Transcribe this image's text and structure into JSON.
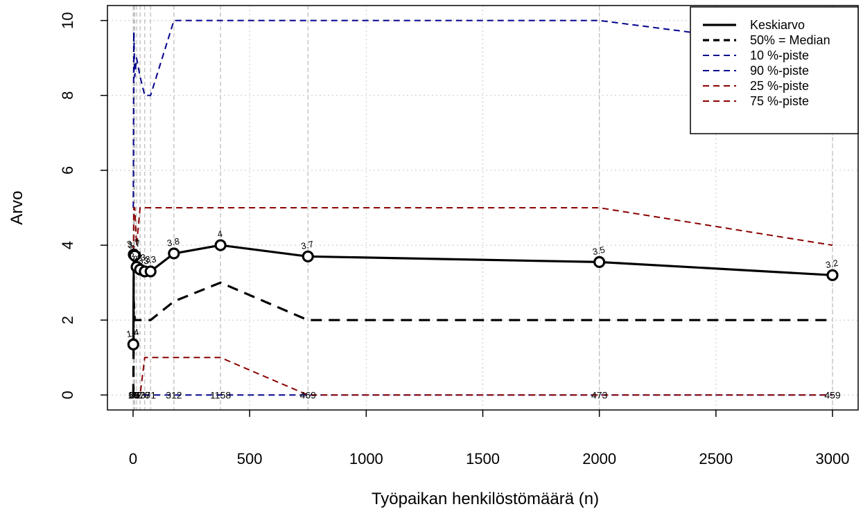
{
  "chart_data": {
    "type": "line",
    "xlabel": "Työpaikan henkilöstömäärä (n)",
    "ylabel": "Arvo",
    "xlim": [
      -110,
      3110
    ],
    "ylim": [
      -0.4,
      10.4
    ],
    "x_ticks": [
      0,
      500,
      1000,
      1500,
      2000,
      2500,
      3000
    ],
    "y_ticks": [
      0,
      2,
      4,
      6,
      8,
      10
    ],
    "grid": true,
    "legend_position": "top-right",
    "x": [
      1,
      3,
      7,
      15,
      30,
      50,
      75,
      175,
      375,
      750,
      2000,
      3000
    ],
    "counts": [
      "18",
      "60",
      "76",
      "72",
      "73",
      "78",
      "71",
      "312",
      "1158",
      "469",
      "473",
      "459"
    ],
    "mean_labels": [
      "1.4",
      "3.7",
      "3.7",
      "3.4",
      "3.3",
      "3.3",
      "3.3",
      "3.8",
      "4",
      "3.7",
      "3.5",
      "3.2"
    ],
    "series": [
      {
        "name": "Keskiarvo",
        "color": "#000000",
        "style": "solid",
        "width": 3.2,
        "markers": true,
        "values": [
          1.35,
          3.75,
          3.72,
          3.42,
          3.35,
          3.3,
          3.3,
          3.78,
          4.0,
          3.7,
          3.55,
          3.2
        ]
      },
      {
        "name": "50% = Median",
        "color": "#000000",
        "style": "dashed",
        "width": 3.2,
        "markers": false,
        "values": [
          0,
          2.5,
          2,
          2,
          2,
          2,
          2,
          2.5,
          3,
          2,
          2,
          2
        ]
      },
      {
        "name": "10 %-piste",
        "color": "#00008B",
        "style": "dashed",
        "width": 2,
        "markers": false,
        "values": [
          0,
          0,
          0,
          0,
          0,
          0,
          0,
          0,
          0,
          0,
          0,
          0
        ]
      },
      {
        "name": "90 %-piste",
        "color": "#00008B",
        "style": "dashed",
        "width": 2,
        "markers": false,
        "values": [
          5,
          9.7,
          8.5,
          9,
          8.5,
          8,
          8,
          10,
          10,
          10,
          10,
          9.2
        ]
      },
      {
        "name": "25 %-piste",
        "color": "#8B0000",
        "style": "dashed",
        "width": 2,
        "markers": false,
        "values": [
          0,
          0,
          0,
          0,
          0,
          1,
          1,
          1,
          1,
          0,
          0,
          0
        ]
      },
      {
        "name": "75 %-piste",
        "color": "#8B0000",
        "style": "dashed",
        "width": 2,
        "markers": false,
        "values": [
          3,
          5,
          5,
          4,
          5,
          5,
          5,
          5,
          5,
          5,
          5,
          4
        ]
      }
    ]
  }
}
